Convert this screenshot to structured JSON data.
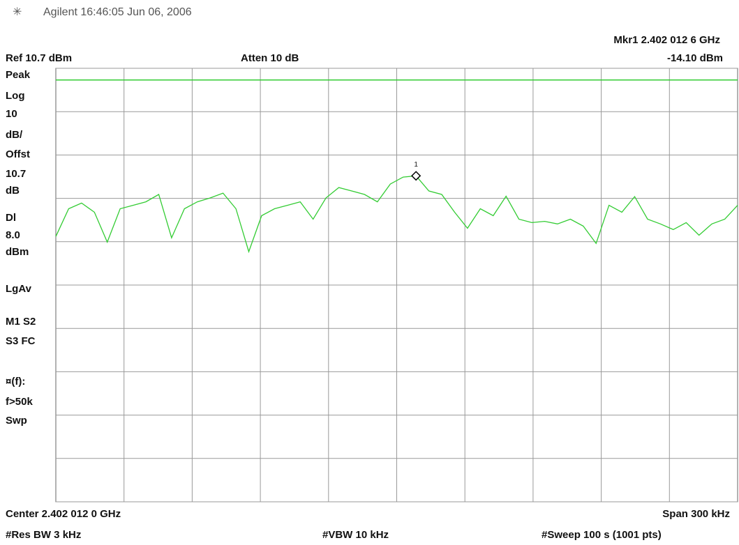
{
  "chart_data": {
    "type": "line",
    "header": "Agilent 16:46:05 Jun 06, 2006",
    "marker_freq": "Mkr1 2.402 012 6 GHz",
    "marker": {
      "value": -14.1,
      "label": "-14.10 dBm",
      "name": "1"
    },
    "ref_level": "Ref 10.7 dBm",
    "attenuation": "Atten 10 dB",
    "sidebar": [
      "Peak",
      "Log",
      "10",
      "dB/",
      "Offst",
      "10.7",
      "dB",
      "Dl",
      "dBm",
      "LgAv",
      "M1  S2",
      "S3  FC",
      "¤(f):",
      "f>50k",
      "Swp"
    ],
    "display_line": {
      "value": 8.0,
      "label": "8.0",
      "color": "#33cc33"
    },
    "center": "Center 2.402 012 0 GHz",
    "span": "Span 300 kHz",
    "res_bw": "#Res BW 3 kHz",
    "vbw": "#VBW 10 kHz",
    "sweep": "#Sweep 100 s (1001 pts)",
    "ylim": [
      -89.3,
      10.7
    ],
    "yticks": [
      -89.3,
      -79.3,
      -69.3,
      -59.3,
      -49.3,
      -39.3,
      -29.3,
      -19.3,
      -9.3,
      0.7,
      10.7
    ],
    "grid": true,
    "series": [
      {
        "name": "Trace 1",
        "color": "#33cc33",
        "values": [
          -28.1,
          -21.7,
          -20.4,
          -22.5,
          -29.4,
          -21.7,
          -20.9,
          -20.1,
          -18.4,
          -28.4,
          -21.7,
          -20.1,
          -19.2,
          -18.1,
          -21.7,
          -31.6,
          -23.3,
          -21.7,
          -20.9,
          -20.1,
          -24.1,
          -19.2,
          -16.8,
          -17.6,
          -18.4,
          -20.1,
          -16.0,
          -14.4,
          -14.1,
          -17.6,
          -18.4,
          -22.5,
          -26.2,
          -21.7,
          -23.3,
          -18.8,
          -24.1,
          -24.9,
          -24.6,
          -25.2,
          -24.1,
          -25.7,
          -29.7,
          -20.9,
          -22.5,
          -18.9,
          -24.1,
          -25.2,
          -26.5,
          -24.9,
          -27.8,
          -25.2,
          -24.1,
          -20.9
        ]
      }
    ]
  }
}
